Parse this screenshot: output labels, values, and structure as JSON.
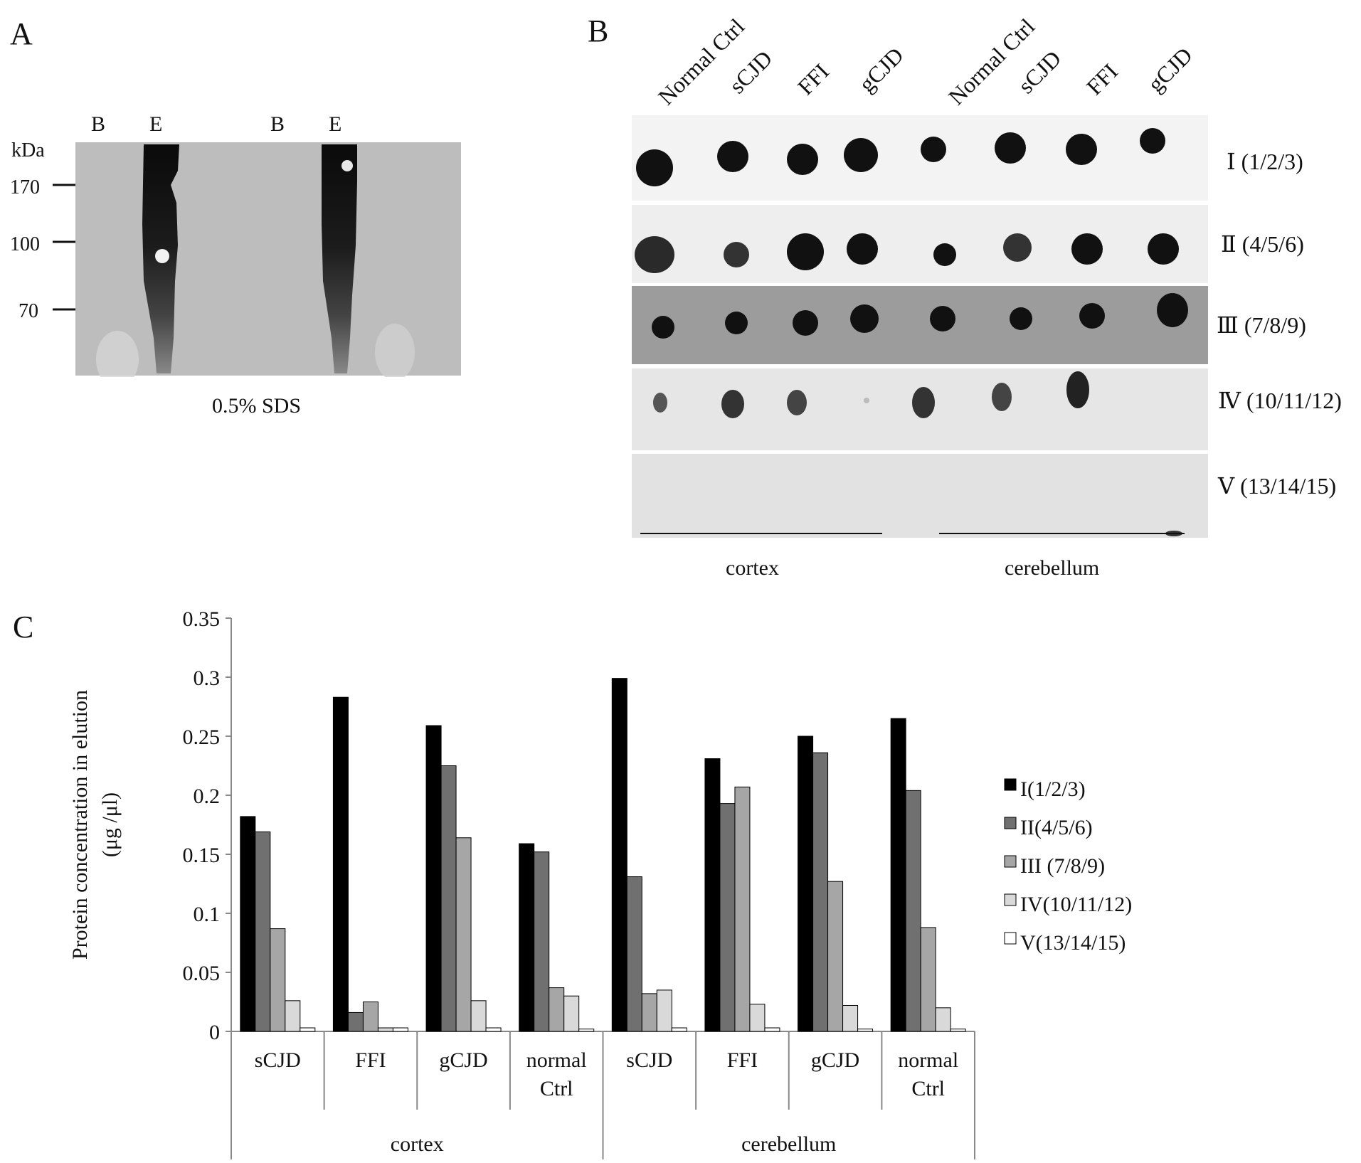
{
  "panels": {
    "a": {
      "letter": "A",
      "lanes": [
        "B",
        "E",
        "B",
        "E"
      ],
      "unit": "kDa",
      "markers": [
        "170",
        "100",
        "70"
      ],
      "caption": "0.5% SDS"
    },
    "b": {
      "letter": "B",
      "columns": [
        "Normal Ctrl",
        "sCJD",
        "FFI",
        "gCJD",
        "Normal Ctrl",
        "sCJD",
        "FFI",
        "gCJD"
      ],
      "rows": [
        "Ⅰ (1/2/3)",
        "Ⅱ (4/5/6)",
        "Ⅲ (7/8/9)",
        "Ⅳ (10/11/12)",
        "Ⅴ (13/14/15)"
      ],
      "regions": [
        "cortex",
        "cerebellum"
      ]
    },
    "c": {
      "letter": "C"
    }
  },
  "chart_data": {
    "type": "bar",
    "ylabel_lines": [
      "Protein concentration in elution",
      "(μg /μl)"
    ],
    "ylim": [
      0,
      0.35
    ],
    "yticks": [
      "0",
      "0.05",
      "0.1",
      "0.15",
      "0.2",
      "0.25",
      "0.3",
      "0.35"
    ],
    "categories": [
      {
        "lines": [
          "sCJD"
        ],
        "group": "cortex"
      },
      {
        "lines": [
          "FFI"
        ],
        "group": "cortex"
      },
      {
        "lines": [
          "gCJD"
        ],
        "group": "cortex"
      },
      {
        "lines": [
          "normal",
          "Ctrl"
        ],
        "group": "cortex"
      },
      {
        "lines": [
          "sCJD"
        ],
        "group": "cerebellum"
      },
      {
        "lines": [
          "FFI"
        ],
        "group": "cerebellum"
      },
      {
        "lines": [
          "gCJD"
        ],
        "group": "cerebellum"
      },
      {
        "lines": [
          "normal",
          "Ctrl"
        ],
        "group": "cerebellum"
      }
    ],
    "groups": [
      "cortex",
      "cerebellum"
    ],
    "legend_position": "right",
    "series": [
      {
        "name": "I(1/2/3)",
        "color": "#000000",
        "values": [
          0.182,
          0.283,
          0.259,
          0.159,
          0.299,
          0.231,
          0.25,
          0.265
        ]
      },
      {
        "name": "II(4/5/6)",
        "color": "#707070",
        "values": [
          0.169,
          0.016,
          0.225,
          0.152,
          0.131,
          0.193,
          0.236,
          0.204
        ]
      },
      {
        "name": "III (7/8/9)",
        "color": "#a6a6a6",
        "values": [
          0.087,
          0.025,
          0.164,
          0.037,
          0.032,
          0.207,
          0.127,
          0.088
        ]
      },
      {
        "name": "IV(10/11/12)",
        "color": "#d9d9d9",
        "values": [
          0.026,
          0.003,
          0.026,
          0.03,
          0.035,
          0.023,
          0.022,
          0.02
        ]
      },
      {
        "name": "V(13/14/15)",
        "color": "#ffffff",
        "values": [
          0.003,
          0.003,
          0.003,
          0.002,
          0.003,
          0.003,
          0.002,
          0.002
        ]
      }
    ]
  }
}
